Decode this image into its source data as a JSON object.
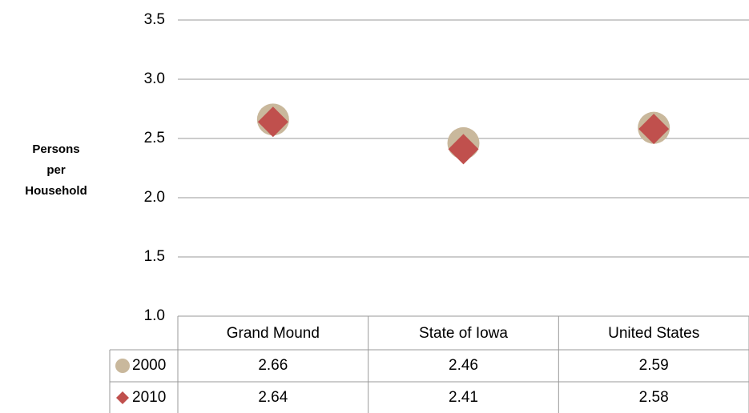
{
  "chart_data": {
    "type": "scatter",
    "y_label": "Persons per Household",
    "categories": [
      "Grand Mound",
      "State of Iowa",
      "United States"
    ],
    "series": [
      {
        "name": "2000",
        "color": "#c9b89c",
        "marker": "circle",
        "values": [
          2.66,
          2.46,
          2.59
        ]
      },
      {
        "name": "2010",
        "color": "#c0504d",
        "marker": "diamond",
        "values": [
          2.64,
          2.41,
          2.58
        ]
      }
    ],
    "ylim": [
      1.0,
      3.5
    ],
    "yticks": [
      {
        "value": 1,
        "label": "1.0"
      },
      1.5,
      {
        "value": 2,
        "label": "2.0"
      },
      2.5,
      {
        "value": 3,
        "label": "3.0"
      },
      3.5
    ],
    "grid": true,
    "data_table": true
  }
}
